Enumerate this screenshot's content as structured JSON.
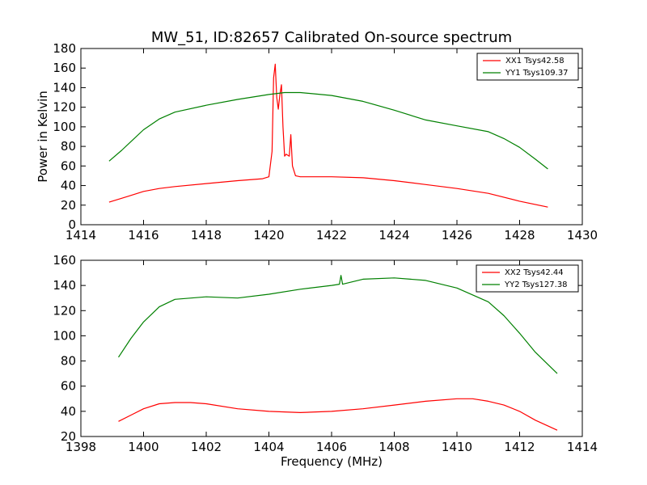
{
  "chart_data": [
    {
      "type": "line",
      "title": "MW_51, ID:82657 Calibrated On-source spectrum",
      "xlabel": "",
      "ylabel": "Power in Kelvin",
      "xlim": [
        1414,
        1430
      ],
      "ylim": [
        0,
        180
      ],
      "xticks": [
        "1414",
        "1416",
        "1418",
        "1420",
        "1422",
        "1424",
        "1426",
        "1428",
        "1430"
      ],
      "yticks": [
        "0",
        "20",
        "40",
        "60",
        "80",
        "100",
        "120",
        "140",
        "160",
        "180"
      ],
      "legend_position": "top-right",
      "grid": false,
      "series": [
        {
          "name": "XX1 Tsys42.58",
          "color": "#ff0000",
          "x": [
            1414.9,
            1415.5,
            1416.0,
            1416.5,
            1417.0,
            1418.0,
            1419.0,
            1419.8,
            1420.0,
            1420.1,
            1420.15,
            1420.2,
            1420.25,
            1420.3,
            1420.35,
            1420.4,
            1420.45,
            1420.5,
            1420.55,
            1420.65,
            1420.7,
            1420.75,
            1420.85,
            1421.0,
            1421.5,
            1422.0,
            1423.0,
            1424.0,
            1425.0,
            1426.0,
            1427.0,
            1428.0,
            1428.9
          ],
          "y": [
            23,
            29,
            34,
            37,
            39,
            42,
            45,
            47,
            49,
            75,
            150,
            164,
            130,
            118,
            133,
            143,
            100,
            70,
            72,
            70,
            92,
            60,
            50,
            49,
            49,
            49,
            48,
            45,
            41,
            37,
            32,
            24,
            18
          ]
        },
        {
          "name": "YY1 Tsys109.37",
          "color": "#008000",
          "x": [
            1414.9,
            1415.3,
            1415.6,
            1416.0,
            1416.5,
            1417.0,
            1418.0,
            1419.0,
            1420.0,
            1420.5,
            1421.0,
            1422.0,
            1423.0,
            1424.0,
            1425.0,
            1426.0,
            1427.0,
            1427.5,
            1428.0,
            1428.5,
            1428.9
          ],
          "y": [
            65,
            76,
            85,
            97,
            108,
            115,
            122,
            128,
            133,
            135,
            135,
            132,
            126,
            117,
            107,
            101,
            95,
            88,
            79,
            67,
            57
          ]
        }
      ]
    },
    {
      "type": "line",
      "title": "",
      "xlabel": "Frequency (MHz)",
      "ylabel": "",
      "xlim": [
        1398,
        1414
      ],
      "ylim": [
        20,
        160
      ],
      "xticks": [
        "1398",
        "1400",
        "1402",
        "1404",
        "1406",
        "1408",
        "1410",
        "1412",
        "1414"
      ],
      "yticks": [
        "20",
        "40",
        "60",
        "80",
        "100",
        "120",
        "140",
        "160"
      ],
      "legend_position": "top-right",
      "grid": false,
      "series": [
        {
          "name": "XX2 Tsys42.44",
          "color": "#ff0000",
          "x": [
            1399.2,
            1399.6,
            1400.0,
            1400.5,
            1401.0,
            1401.5,
            1402.0,
            1403.0,
            1404.0,
            1405.0,
            1406.0,
            1407.0,
            1408.0,
            1409.0,
            1410.0,
            1410.5,
            1411.0,
            1411.5,
            1412.0,
            1412.5,
            1413.2
          ],
          "y": [
            32,
            37,
            42,
            46,
            47,
            47,
            46,
            42,
            40,
            39,
            40,
            42,
            45,
            48,
            50,
            50,
            48,
            45,
            40,
            33,
            25
          ]
        },
        {
          "name": "YY2 Tsys127.38",
          "color": "#008000",
          "x": [
            1399.2,
            1399.6,
            1400.0,
            1400.5,
            1401.0,
            1402.0,
            1403.0,
            1404.0,
            1405.0,
            1406.0,
            1406.25,
            1406.3,
            1406.35,
            1407.0,
            1408.0,
            1409.0,
            1410.0,
            1411.0,
            1411.5,
            1412.0,
            1412.5,
            1413.2
          ],
          "y": [
            83,
            98,
            111,
            123,
            129,
            131,
            130,
            133,
            137,
            140,
            141,
            148,
            141,
            145,
            146,
            144,
            138,
            127,
            116,
            102,
            87,
            70
          ]
        }
      ]
    }
  ]
}
